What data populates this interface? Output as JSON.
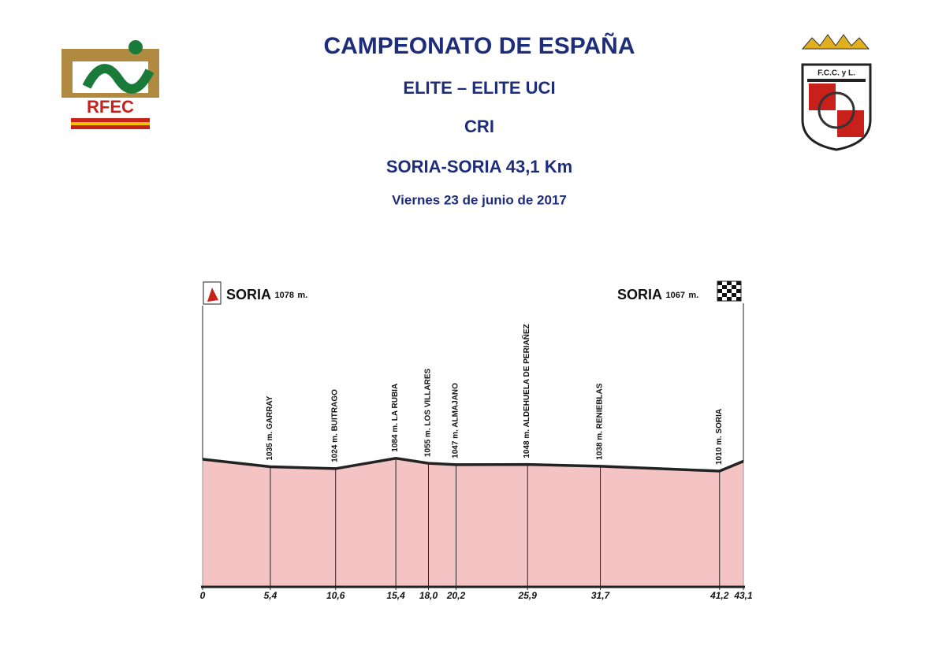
{
  "header": {
    "title": "CAMPEONATO DE ESPAÑA",
    "category": "ELITE – ELITE UCI",
    "discipline": "CRI",
    "route": "SORIA-SORIA 43,1 Km",
    "date": "Viernes 23 de junio de 2017"
  },
  "logos": {
    "left": "RFEC",
    "right": "F.C.C. y L."
  },
  "chart_data": {
    "type": "area",
    "unit": "m.",
    "color": "#f4c4c4",
    "line_color": "#222222",
    "start_name": "SORIA",
    "finish_name": "SORIA",
    "x": [
      0,
      5.4,
      10.6,
      15.4,
      18.0,
      20.2,
      25.9,
      31.7,
      41.2,
      43.1
    ],
    "values": [
      1078,
      1035,
      1024,
      1084,
      1055,
      1047,
      1048,
      1038,
      1010,
      1067
    ],
    "point_names": [
      null,
      "GARRAY",
      "BUITRAGO",
      "LA RUBIA",
      "LOS VILLARES",
      "ALMAJANO",
      "ALDEHUELA DE PERIAÑEZ",
      "RENIEBLAS",
      "SORIA",
      null
    ],
    "xlim": [
      0,
      43.1
    ],
    "xticks": [
      0,
      {
        "value": 5.4,
        "label": "5,4"
      },
      {
        "value": 10.6,
        "label": "10,6"
      },
      {
        "value": 15.4,
        "label": "15,4"
      },
      {
        "value": 18.0,
        "label": "18,0"
      },
      {
        "value": 20.2,
        "label": "20,2"
      },
      {
        "value": 25.9,
        "label": "25,9"
      },
      {
        "value": 31.7,
        "label": "31,7"
      },
      {
        "value": 41.2,
        "label": "41,2"
      },
      {
        "value": 43.1,
        "label": "43,1"
      }
    ]
  }
}
